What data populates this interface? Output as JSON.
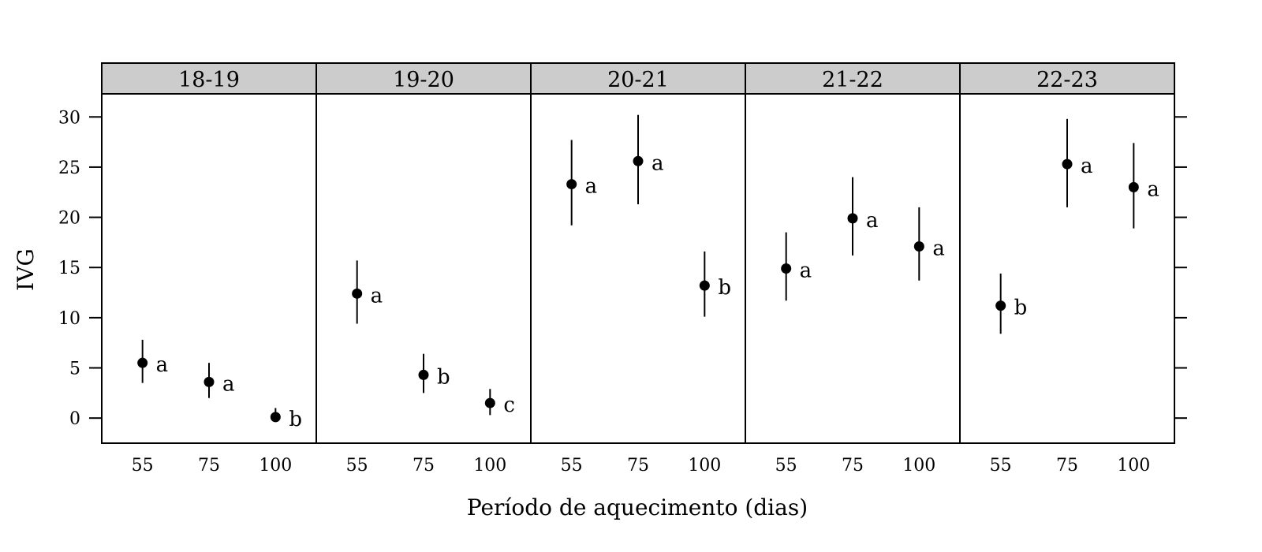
{
  "chart_data": {
    "type": "scatter",
    "title": "",
    "xlabel": "Período de aquecimento (dias)",
    "ylabel": "IVG",
    "ylim": [
      -2.5,
      32.3
    ],
    "yticks": [
      "0",
      "5",
      "10",
      "15",
      "20",
      "25",
      "30"
    ],
    "categories": [
      "55",
      "75",
      "100"
    ],
    "grid": false,
    "legend": "none",
    "colors": {
      "points": "#000000",
      "strip_fill": "#cccccc",
      "frame": "#000000"
    },
    "panels": [
      {
        "name": "18-19",
        "points": [
          {
            "x": "55",
            "y": 5.5,
            "lower": 3.5,
            "upper": 7.8,
            "group": "a"
          },
          {
            "x": "75",
            "y": 3.6,
            "lower": 2.0,
            "upper": 5.5,
            "group": "a"
          },
          {
            "x": "100",
            "y": 0.1,
            "lower": -0.2,
            "upper": 1.0,
            "group": "b"
          }
        ]
      },
      {
        "name": "19-20",
        "points": [
          {
            "x": "55",
            "y": 12.4,
            "lower": 9.4,
            "upper": 15.7,
            "group": "a"
          },
          {
            "x": "75",
            "y": 4.3,
            "lower": 2.5,
            "upper": 6.4,
            "group": "b"
          },
          {
            "x": "100",
            "y": 1.5,
            "lower": 0.3,
            "upper": 2.9,
            "group": "c"
          }
        ]
      },
      {
        "name": "20-21",
        "points": [
          {
            "x": "55",
            "y": 23.3,
            "lower": 19.2,
            "upper": 27.7,
            "group": "a"
          },
          {
            "x": "75",
            "y": 25.6,
            "lower": 21.3,
            "upper": 30.2,
            "group": "a"
          },
          {
            "x": "100",
            "y": 13.2,
            "lower": 10.1,
            "upper": 16.6,
            "group": "b"
          }
        ]
      },
      {
        "name": "21-22",
        "points": [
          {
            "x": "55",
            "y": 14.9,
            "lower": 11.7,
            "upper": 18.5,
            "group": "a"
          },
          {
            "x": "75",
            "y": 19.9,
            "lower": 16.2,
            "upper": 24.0,
            "group": "a"
          },
          {
            "x": "100",
            "y": 17.1,
            "lower": 13.7,
            "upper": 21.0,
            "group": "a"
          }
        ]
      },
      {
        "name": "22-23",
        "points": [
          {
            "x": "55",
            "y": 11.2,
            "lower": 8.4,
            "upper": 14.4,
            "group": "b"
          },
          {
            "x": "75",
            "y": 25.3,
            "lower": 21.0,
            "upper": 29.8,
            "group": "a"
          },
          {
            "x": "100",
            "y": 23.0,
            "lower": 18.9,
            "upper": 27.4,
            "group": "a"
          }
        ]
      }
    ]
  }
}
